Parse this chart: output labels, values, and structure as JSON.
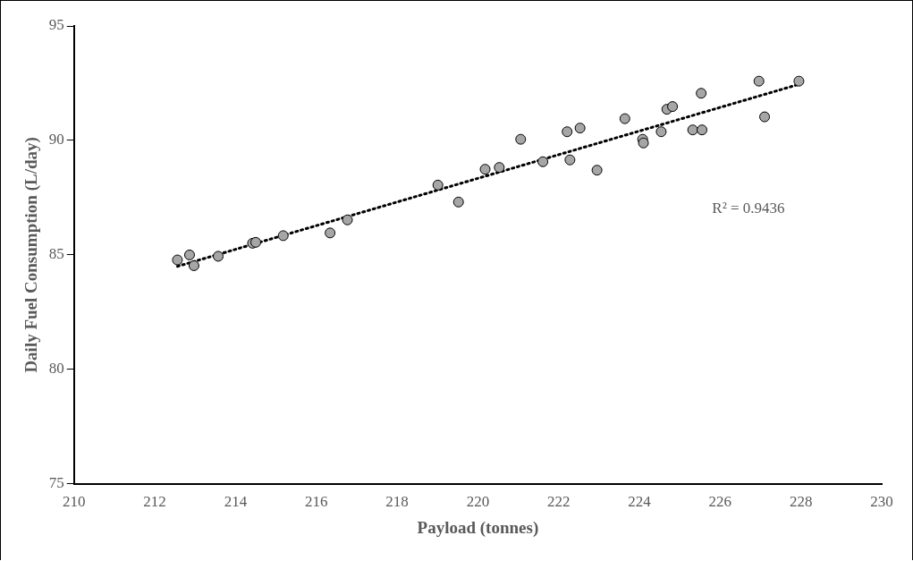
{
  "chart_data": {
    "type": "scatter",
    "xlabel": "Payload (tonnes)",
    "ylabel": "Daily Fuel Consumption (L/day)",
    "xlim": [
      210,
      230
    ],
    "xticks": [
      210,
      212,
      214,
      216,
      218,
      220,
      222,
      224,
      226,
      228,
      230
    ],
    "ylim": [
      75,
      95
    ],
    "yticks": [
      75,
      80,
      85,
      90,
      95
    ],
    "grid": false,
    "legend": false,
    "marker": "circle",
    "annotations": [
      "R² = 0.9436"
    ],
    "series": [
      {
        "color": "#a6a6a6",
        "x": [
          212.56,
          212.86,
          212.97,
          213.57,
          214.42,
          214.5,
          215.18,
          216.34,
          216.77,
          219.01,
          219.52,
          220.18,
          220.53,
          221.06,
          221.61,
          222.21,
          222.28,
          222.53,
          222.95,
          223.64,
          224.08,
          224.1,
          224.54,
          224.68,
          224.82,
          225.32,
          225.55,
          225.53,
          226.96,
          227.1,
          227.95
        ],
        "values": [
          84.78,
          85.0,
          84.53,
          84.94,
          85.51,
          85.55,
          85.84,
          85.96,
          86.53,
          88.05,
          87.31,
          88.74,
          88.82,
          90.05,
          89.07,
          90.38,
          89.15,
          90.54,
          88.7,
          90.95,
          90.05,
          89.89,
          90.38,
          91.36,
          91.48,
          90.46,
          90.46,
          92.06,
          92.59,
          91.03,
          92.59
        ]
      },
      {
        "type": "line",
        "color": "#000000",
        "line_style": "dotted",
        "marker": "none",
        "x": [
          212.56,
          227.95
        ],
        "values": [
          84.5,
          92.45
        ]
      }
    ]
  }
}
